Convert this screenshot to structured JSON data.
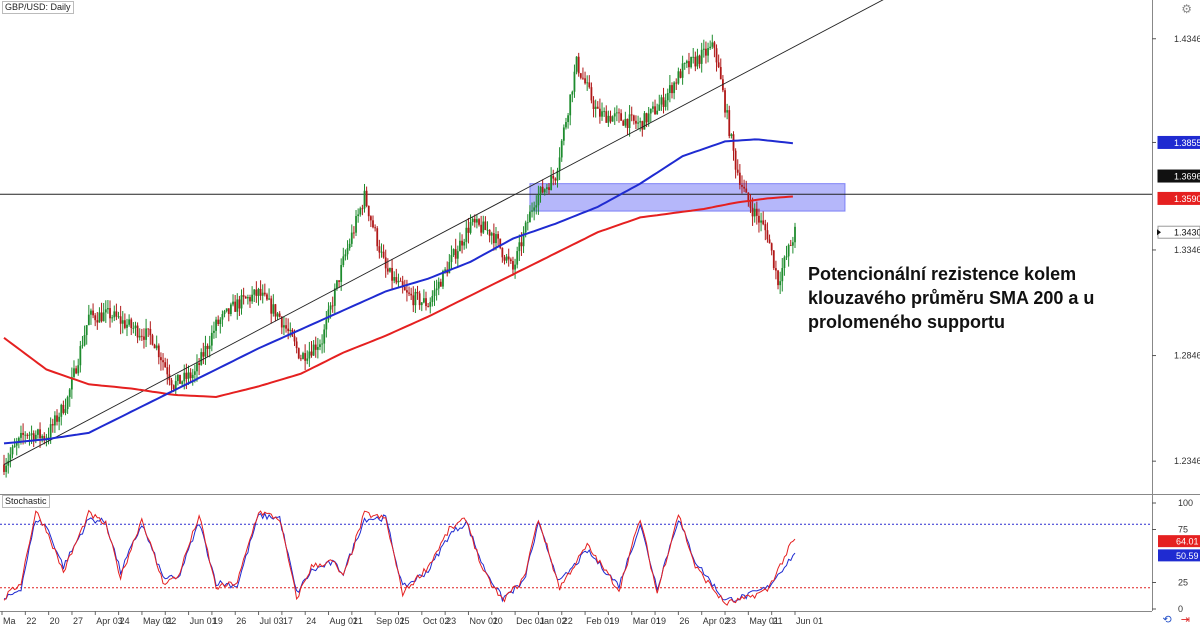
{
  "chart_data": [
    {
      "type": "candlestick",
      "title": "GBP/USD: Daily",
      "ylim": [
        1.22,
        1.452
      ],
      "price_ticks": [
        "1.4346",
        "1.3855",
        "1.3346",
        "1.2846",
        "1.2346"
      ],
      "price_tick_values": [
        1.4346,
        1.3855,
        1.3346,
        1.2846,
        1.2346
      ],
      "price_labels": [
        {
          "text": "1.3855",
          "value": 1.3855,
          "bg": "#1f2bd1",
          "fg": "#ffffff"
        },
        {
          "text": "1.3696",
          "value": 1.3696,
          "bg": "#111111",
          "fg": "#ffffff"
        },
        {
          "text": "1.3590",
          "value": 1.359,
          "bg": "#e52020",
          "fg": "#ffffff"
        },
        {
          "text": "1.3430",
          "value": 1.343,
          "bg": "#ffffff",
          "fg": "#111111"
        }
      ],
      "x_labels": [
        "Ma",
        "22",
        "20",
        "27",
        "Apr 03",
        "24",
        "May 01",
        "22",
        "Jun 01",
        "19",
        "26",
        "Jul 03",
        "17",
        "24",
        "Aug 01",
        "21",
        "Sep 01",
        "25",
        "Oct 02",
        "23",
        "Nov 01",
        "20",
        "Dec 01",
        "Jan 02",
        "22",
        "Feb 01",
        "19",
        "Mar 01",
        "19",
        "26",
        "Apr 02",
        "23",
        "May 01",
        "21",
        "Jun 01"
      ],
      "resistance_zone": [
        1.353,
        1.366
      ],
      "horizontal_line": 1.361,
      "trendline": {
        "start": [
          0,
          1.233
        ],
        "end": [
          373,
          1.431
        ]
      },
      "sma100_color": "#1f2bd1",
      "sma200_color": "#e52020",
      "up_color": "#1e8c2e",
      "down_color": "#b01818",
      "sma100": [
        [
          0,
          1.243
        ],
        [
          20,
          1.245
        ],
        [
          40,
          1.248
        ],
        [
          60,
          1.258
        ],
        [
          80,
          1.268
        ],
        [
          100,
          1.278
        ],
        [
          120,
          1.288
        ],
        [
          140,
          1.297
        ],
        [
          160,
          1.306
        ],
        [
          180,
          1.315
        ],
        [
          200,
          1.321
        ],
        [
          220,
          1.329
        ],
        [
          240,
          1.34
        ],
        [
          260,
          1.347
        ],
        [
          280,
          1.355
        ],
        [
          300,
          1.366
        ],
        [
          320,
          1.379
        ],
        [
          340,
          1.386
        ],
        [
          355,
          1.387
        ],
        [
          373,
          1.385
        ]
      ],
      "sma200": [
        [
          0,
          1.293
        ],
        [
          20,
          1.278
        ],
        [
          40,
          1.271
        ],
        [
          60,
          1.269
        ],
        [
          80,
          1.266
        ],
        [
          100,
          1.265
        ],
        [
          120,
          1.27
        ],
        [
          140,
          1.276
        ],
        [
          160,
          1.286
        ],
        [
          180,
          1.294
        ],
        [
          200,
          1.303
        ],
        [
          220,
          1.313
        ],
        [
          240,
          1.323
        ],
        [
          260,
          1.333
        ],
        [
          280,
          1.343
        ],
        [
          300,
          1.35
        ],
        [
          330,
          1.354
        ],
        [
          345,
          1.357
        ],
        [
          360,
          1.359
        ],
        [
          373,
          1.36
        ]
      ],
      "price_path": [
        [
          0,
          1.233
        ],
        [
          10,
          1.248
        ],
        [
          20,
          1.246
        ],
        [
          30,
          1.264
        ],
        [
          40,
          1.303
        ],
        [
          50,
          1.304
        ],
        [
          60,
          1.298
        ],
        [
          70,
          1.293
        ],
        [
          80,
          1.271
        ],
        [
          90,
          1.276
        ],
        [
          100,
          1.299
        ],
        [
          110,
          1.309
        ],
        [
          120,
          1.314
        ],
        [
          130,
          1.303
        ],
        [
          140,
          1.284
        ],
        [
          150,
          1.292
        ],
        [
          160,
          1.329
        ],
        [
          170,
          1.36
        ],
        [
          180,
          1.325
        ],
        [
          190,
          1.313
        ],
        [
          200,
          1.309
        ],
        [
          210,
          1.328
        ],
        [
          220,
          1.347
        ],
        [
          230,
          1.343
        ],
        [
          240,
          1.325
        ],
        [
          250,
          1.358
        ],
        [
          260,
          1.37
        ],
        [
          270,
          1.423
        ],
        [
          280,
          1.399
        ],
        [
          290,
          1.397
        ],
        [
          300,
          1.394
        ],
        [
          310,
          1.404
        ],
        [
          320,
          1.42
        ],
        [
          330,
          1.427
        ],
        [
          335,
          1.431
        ],
        [
          345,
          1.375
        ],
        [
          350,
          1.359
        ],
        [
          360,
          1.342
        ],
        [
          365,
          1.32
        ],
        [
          373,
          1.343
        ]
      ]
    },
    {
      "type": "line",
      "title": "Stochastic",
      "ylim": [
        0,
        100
      ],
      "y_ticks": [
        "100",
        "75",
        "25",
        "0"
      ],
      "y_tick_values": [
        100,
        75,
        25,
        0
      ],
      "level_lines": [
        80,
        20
      ],
      "value_labels": [
        {
          "text": "64.01",
          "value": 64.01,
          "bg": "#e52020",
          "fg": "#ffffff"
        },
        {
          "text": "50.59",
          "value": 50.59,
          "bg": "#1f2bd1",
          "fg": "#ffffff"
        }
      ],
      "k_color": "#e52020",
      "d_color": "#1f2bd1",
      "k_path": [
        [
          0,
          10
        ],
        [
          8,
          25
        ],
        [
          15,
          92
        ],
        [
          20,
          75
        ],
        [
          28,
          35
        ],
        [
          40,
          90
        ],
        [
          48,
          80
        ],
        [
          55,
          30
        ],
        [
          65,
          85
        ],
        [
          75,
          25
        ],
        [
          82,
          30
        ],
        [
          92,
          88
        ],
        [
          100,
          20
        ],
        [
          110,
          25
        ],
        [
          120,
          92
        ],
        [
          130,
          85
        ],
        [
          138,
          10
        ],
        [
          145,
          40
        ],
        [
          155,
          45
        ],
        [
          160,
          30
        ],
        [
          170,
          90
        ],
        [
          180,
          85
        ],
        [
          188,
          15
        ],
        [
          200,
          40
        ],
        [
          210,
          75
        ],
        [
          218,
          85
        ],
        [
          226,
          35
        ],
        [
          235,
          8
        ],
        [
          245,
          28
        ],
        [
          252,
          85
        ],
        [
          262,
          20
        ],
        [
          275,
          60
        ],
        [
          290,
          18
        ],
        [
          300,
          85
        ],
        [
          308,
          15
        ],
        [
          318,
          90
        ],
        [
          326,
          40
        ],
        [
          340,
          5
        ],
        [
          350,
          10
        ],
        [
          360,
          18
        ],
        [
          372,
          64
        ]
      ],
      "d_path": [
        [
          0,
          8
        ],
        [
          8,
          20
        ],
        [
          15,
          85
        ],
        [
          20,
          78
        ],
        [
          28,
          40
        ],
        [
          40,
          85
        ],
        [
          48,
          82
        ],
        [
          55,
          35
        ],
        [
          65,
          80
        ],
        [
          75,
          30
        ],
        [
          82,
          28
        ],
        [
          92,
          82
        ],
        [
          100,
          25
        ],
        [
          110,
          22
        ],
        [
          120,
          88
        ],
        [
          130,
          86
        ],
        [
          138,
          15
        ],
        [
          145,
          36
        ],
        [
          155,
          44
        ],
        [
          160,
          34
        ],
        [
          170,
          85
        ],
        [
          180,
          86
        ],
        [
          188,
          20
        ],
        [
          200,
          36
        ],
        [
          210,
          70
        ],
        [
          218,
          82
        ],
        [
          226,
          40
        ],
        [
          235,
          10
        ],
        [
          245,
          25
        ],
        [
          252,
          80
        ],
        [
          262,
          25
        ],
        [
          275,
          55
        ],
        [
          290,
          22
        ],
        [
          300,
          80
        ],
        [
          308,
          20
        ],
        [
          318,
          85
        ],
        [
          326,
          45
        ],
        [
          340,
          8
        ],
        [
          350,
          12
        ],
        [
          360,
          20
        ],
        [
          372,
          50.59
        ]
      ]
    }
  ],
  "annotation": {
    "text": "Potencionální rezistence kolem klouzavého průměru SMA 200 a u prolomeného supportu"
  },
  "icons": {
    "settings": "gear-icon",
    "sync": "sync-icon",
    "navigate": "navigate-icon"
  }
}
